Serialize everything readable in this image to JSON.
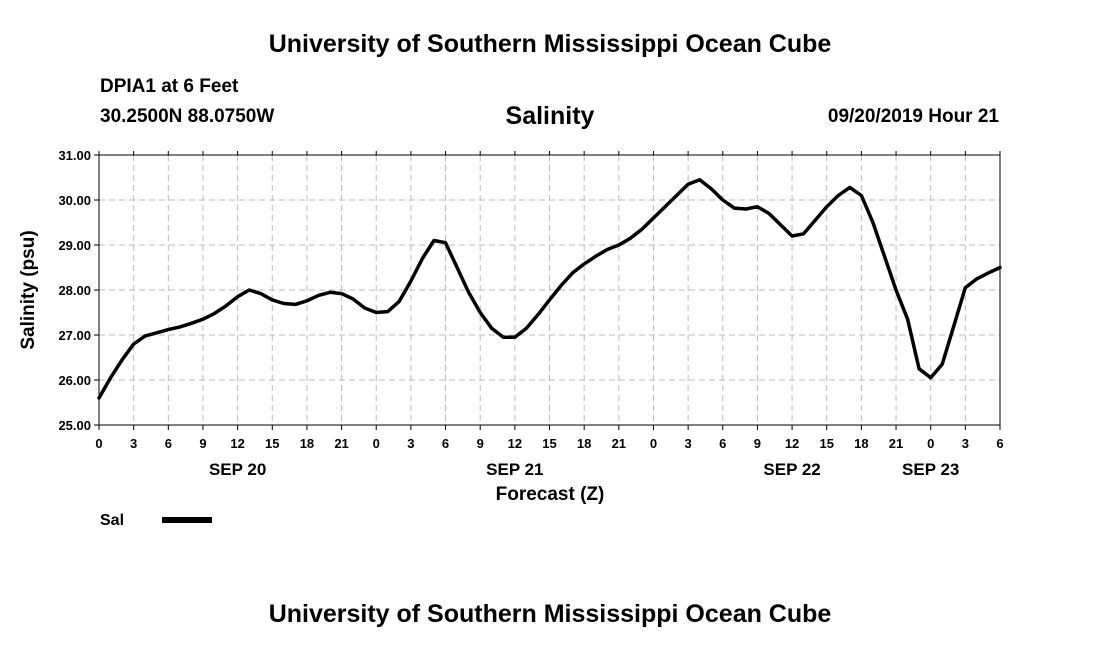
{
  "header": {
    "title": "University of Southern Mississippi Ocean Cube",
    "station": "DPIA1 at 6 Feet",
    "location": "30.2500N 88.0750W",
    "variable": "Salinity",
    "timestamp": "09/20/2019 Hour 21"
  },
  "footer": {
    "title": "University of Southern Mississippi Ocean Cube"
  },
  "legend": {
    "label": "Sal",
    "color": "#000000"
  },
  "chart_data": {
    "type": "line",
    "xlabel": "Forecast (Z)",
    "ylabel": "Salinity (psu)",
    "ylim": [
      25.0,
      31.0
    ],
    "yticks": [
      "25.00",
      "26.00",
      "27.00",
      "28.00",
      "29.00",
      "30.00",
      "31.00"
    ],
    "xlim_hours": [
      0,
      78
    ],
    "xticks": [
      "0",
      "3",
      "6",
      "9",
      "12",
      "15",
      "18",
      "21",
      "0",
      "3",
      "6",
      "9",
      "12",
      "15",
      "18",
      "21",
      "0",
      "3",
      "6",
      "9",
      "12",
      "15",
      "18",
      "21",
      "0",
      "3",
      "6"
    ],
    "day_labels": [
      {
        "label": "SEP 20",
        "hour": 12
      },
      {
        "label": "SEP 21",
        "hour": 36
      },
      {
        "label": "SEP 22",
        "hour": 60
      },
      {
        "label": "SEP 23",
        "hour": 72
      }
    ],
    "grid": true,
    "series": [
      {
        "name": "Sal",
        "x": [
          0,
          1,
          2,
          3,
          4,
          5,
          6,
          7,
          8,
          9,
          10,
          11,
          12,
          13,
          14,
          15,
          16,
          17,
          18,
          19,
          20,
          21,
          22,
          23,
          24,
          25,
          26,
          27,
          28,
          29,
          30,
          31,
          32,
          33,
          34,
          35,
          36,
          37,
          38,
          39,
          40,
          41,
          42,
          43,
          44,
          45,
          46,
          47,
          48,
          49,
          50,
          51,
          52,
          53,
          54,
          55,
          56,
          57,
          58,
          59,
          60,
          61,
          62,
          63,
          64,
          65,
          66,
          67,
          68,
          69,
          70,
          71,
          72,
          73,
          74,
          75,
          76,
          77,
          78
        ],
        "values": [
          25.6,
          26.05,
          26.45,
          26.8,
          26.98,
          27.05,
          27.12,
          27.18,
          27.26,
          27.35,
          27.48,
          27.65,
          27.85,
          28.0,
          27.92,
          27.78,
          27.7,
          27.68,
          27.76,
          27.88,
          27.95,
          27.92,
          27.8,
          27.6,
          27.5,
          27.52,
          27.75,
          28.2,
          28.7,
          29.1,
          29.05,
          28.5,
          27.95,
          27.5,
          27.15,
          26.95,
          26.95,
          27.15,
          27.45,
          27.78,
          28.1,
          28.38,
          28.58,
          28.75,
          28.9,
          29.0,
          29.15,
          29.35,
          29.6,
          29.85,
          30.1,
          30.35,
          30.45,
          30.25,
          30.0,
          29.82,
          29.8,
          29.85,
          29.7,
          29.45,
          29.2,
          29.25,
          29.55,
          29.85,
          30.1,
          30.28,
          30.1,
          29.5,
          28.75,
          28.0,
          27.35,
          26.25,
          26.05,
          26.35,
          27.2,
          28.05,
          28.25,
          28.38,
          28.5
        ]
      }
    ]
  }
}
